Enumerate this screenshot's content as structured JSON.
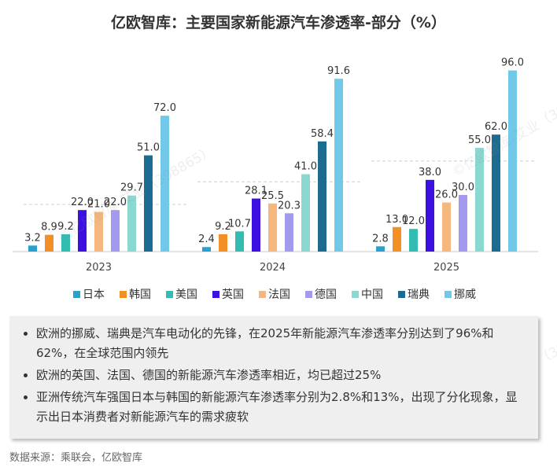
{
  "title": "亿欧智库：主要国家新能源汽车渗透率-部分（%）",
  "chart_data": {
    "type": "bar",
    "title": "亿欧智库：主要国家新能源汽车渗透率-部分（%）",
    "categories": [
      "2023",
      "2024",
      "2025"
    ],
    "series": [
      {
        "name": "日本",
        "color": "#2aa0cc",
        "values": [
          3.2,
          2.4,
          2.8
        ]
      },
      {
        "name": "韩国",
        "color": "#f39025",
        "values": [
          8.9,
          9.2,
          13.0
        ]
      },
      {
        "name": "美国",
        "color": "#33bcb0",
        "values": [
          9.2,
          10.7,
          12.0
        ]
      },
      {
        "name": "英国",
        "color": "#3b10e0",
        "values": [
          22.0,
          28.1,
          38.0
        ]
      },
      {
        "name": "法国",
        "color": "#f5b77e",
        "values": [
          21.0,
          25.5,
          26.0
        ]
      },
      {
        "name": "德国",
        "color": "#a39af0",
        "values": [
          22.0,
          20.3,
          30.0
        ]
      },
      {
        "name": "中国",
        "color": "#8ad8cf",
        "values": [
          29.7,
          41.0,
          55.0
        ]
      },
      {
        "name": "瑞典",
        "color": "#1c6c91",
        "values": [
          51.0,
          58.4,
          62.0
        ]
      },
      {
        "name": "挪威",
        "color": "#72c8e8",
        "values": [
          72.0,
          91.6,
          96.0
        ]
      }
    ],
    "reference_lines": [
      25,
      37,
      48
    ],
    "xlabel": "",
    "ylabel": "",
    "ylim": [
      0,
      100
    ],
    "legend_position": "bottom"
  },
  "notes": [
    "欧洲的挪威、瑞典是汽车电动化的先锋，在2025年新能源汽车渗透率分别达到了96%和62%，在全球范围内领先",
    "欧洲的英国、法国、德国的新能源汽车渗透率相近，均已超过25%",
    "亚洲传统汽车强国日本与韩国的新能源汽车渗透率分别为2.8%和13%，出现了分化现象，显示出日本消费者对新能源汽车的需求疲软"
  ],
  "source": "数据来源：乘联会，亿欧智库",
  "watermark": "©亿欧智库-艾业（398865）"
}
